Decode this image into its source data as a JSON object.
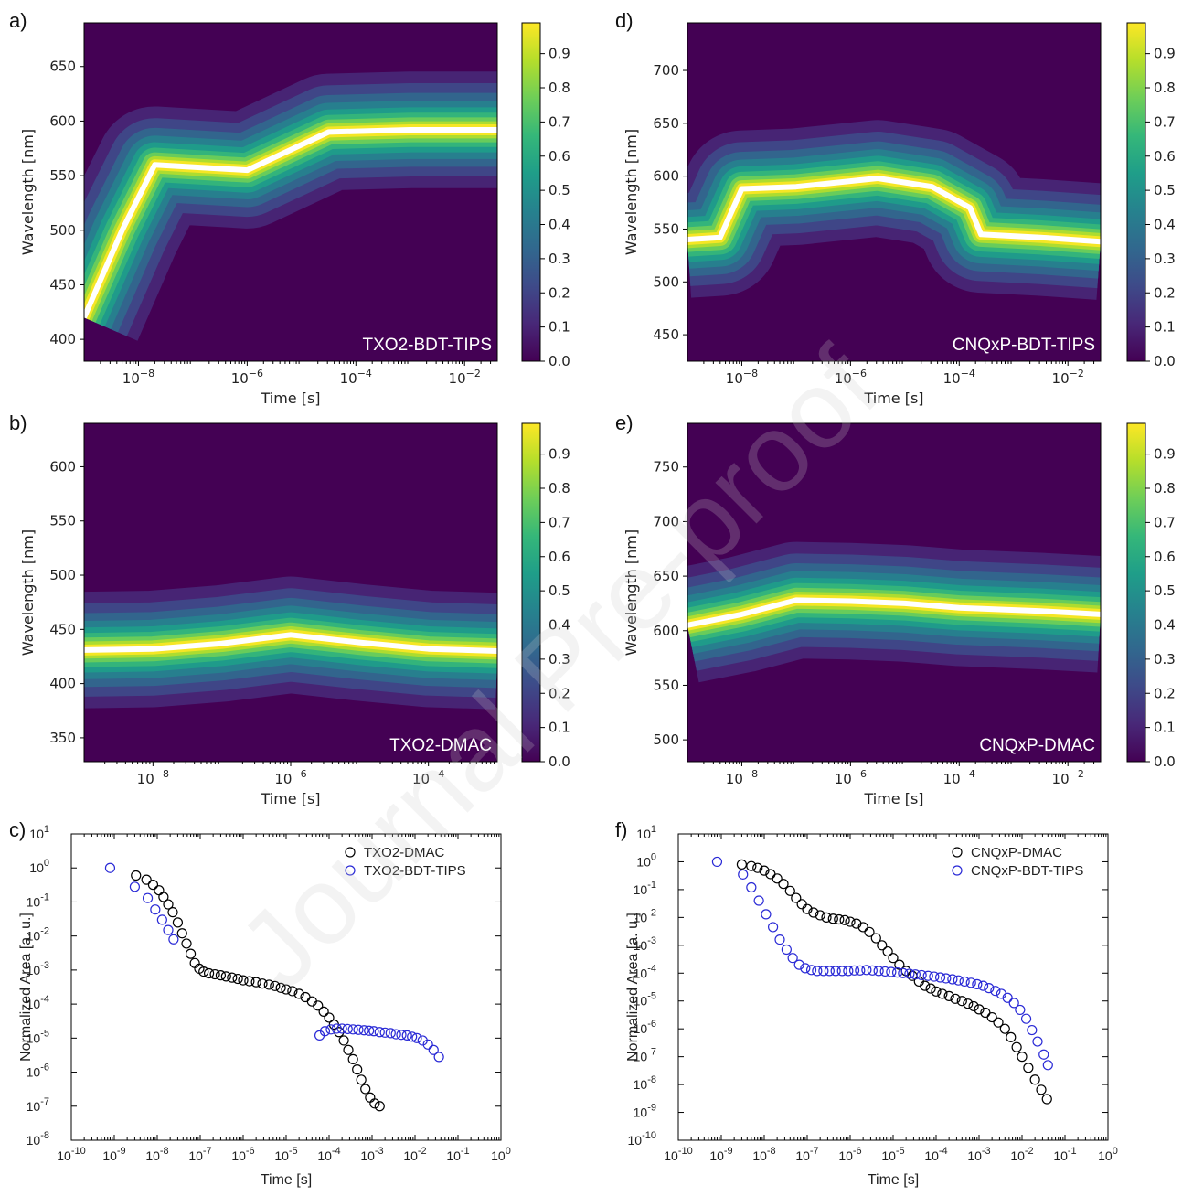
{
  "watermark": "Journal Pre-proof",
  "colors": {
    "viridis": [
      "#440154",
      "#482878",
      "#3e4a89",
      "#31688e",
      "#26828e",
      "#1f9e89",
      "#35b779",
      "#6ece58",
      "#b5de2b",
      "#fde725"
    ],
    "white": "#ffffff",
    "black": "#000000",
    "blue": "#2a2ad6"
  },
  "chart_data": [
    {
      "id": "a",
      "panel_label": "a)",
      "type": "heatmap",
      "title": "TXO2-BDT-TIPS",
      "xlabel": "Time [s]",
      "ylabel": "Wavelength [nm]",
      "xscale": "log",
      "xlim": [
        1e-09,
        0.04
      ],
      "ylim": [
        380,
        690
      ],
      "yticks": [
        "400",
        "450",
        "500",
        "550",
        "600",
        "650"
      ],
      "ytick_values": [
        400,
        450,
        500,
        550,
        600,
        650
      ],
      "xtick_exponents": [
        "-8",
        "-6",
        "-4",
        "-2"
      ],
      "xtick_values": [
        -8,
        -6,
        -4,
        -2
      ],
      "colorbar": {
        "ticks": [
          "0.0",
          "0.1",
          "0.2",
          "0.3",
          "0.4",
          "0.5",
          "0.6",
          "0.7",
          "0.8",
          "0.9"
        ],
        "range": [
          0,
          0.99
        ]
      },
      "peak_trace": [
        [
          -9,
          420
        ],
        [
          -8.3,
          500
        ],
        [
          -7.7,
          560
        ],
        [
          -6,
          555
        ],
        [
          -4.5,
          590
        ],
        [
          -3,
          592
        ],
        [
          -1.4,
          592
        ]
      ]
    },
    {
      "id": "d",
      "panel_label": "d)",
      "type": "heatmap",
      "title": "CNQxP-BDT-TIPS",
      "xlabel": "Time [s]",
      "ylabel": "Wavelength [nm]",
      "xscale": "log",
      "xlim": [
        1e-09,
        0.04
      ],
      "ylim": [
        425,
        745
      ],
      "yticks": [
        "450",
        "500",
        "550",
        "600",
        "650",
        "700"
      ],
      "ytick_values": [
        450,
        500,
        550,
        600,
        650,
        700
      ],
      "xtick_exponents": [
        "-8",
        "-6",
        "-4",
        "-2"
      ],
      "xtick_values": [
        -8,
        -6,
        -4,
        -2
      ],
      "colorbar": {
        "ticks": [
          "0.0",
          "0.1",
          "0.2",
          "0.3",
          "0.4",
          "0.5",
          "0.6",
          "0.7",
          "0.8",
          "0.9"
        ],
        "range": [
          0,
          0.99
        ]
      },
      "peak_trace": [
        [
          -9,
          540
        ],
        [
          -8.4,
          542
        ],
        [
          -8.0,
          588
        ],
        [
          -7,
          590
        ],
        [
          -5.5,
          598
        ],
        [
          -4.5,
          590
        ],
        [
          -3.8,
          570
        ],
        [
          -3.6,
          545
        ],
        [
          -2.5,
          542
        ],
        [
          -1.4,
          538
        ]
      ]
    },
    {
      "id": "b",
      "panel_label": "b)",
      "type": "heatmap",
      "title": "TXO2-DMAC",
      "xlabel": "Time [s]",
      "ylabel": "Wavelength [nm]",
      "xscale": "log",
      "xlim": [
        1e-09,
        0.001
      ],
      "ylim": [
        328,
        640
      ],
      "yticks": [
        "350",
        "400",
        "450",
        "500",
        "550",
        "600"
      ],
      "ytick_values": [
        350,
        400,
        450,
        500,
        550,
        600
      ],
      "xtick_exponents": [
        "-8",
        "-6",
        "-4"
      ],
      "xtick_values": [
        -8,
        -6,
        -4
      ],
      "colorbar": {
        "ticks": [
          "0.0",
          "0.1",
          "0.2",
          "0.3",
          "0.4",
          "0.5",
          "0.6",
          "0.7",
          "0.8",
          "0.9"
        ],
        "range": [
          0,
          0.99
        ]
      },
      "peak_trace": [
        [
          -9,
          431
        ],
        [
          -8,
          432
        ],
        [
          -7,
          437
        ],
        [
          -6,
          445
        ],
        [
          -5,
          438
        ],
        [
          -4,
          432
        ],
        [
          -3,
          430
        ]
      ]
    },
    {
      "id": "e",
      "panel_label": "e)",
      "type": "heatmap",
      "title": "CNQxP-DMAC",
      "xlabel": "Time [s]",
      "ylabel": "Wavelength [nm]",
      "xscale": "log",
      "xlim": [
        1e-09,
        0.04
      ],
      "ylim": [
        480,
        790
      ],
      "yticks": [
        "500",
        "550",
        "600",
        "650",
        "700",
        "750"
      ],
      "ytick_values": [
        500,
        550,
        600,
        650,
        700,
        750
      ],
      "xtick_exponents": [
        "-8",
        "-6",
        "-4",
        "-2"
      ],
      "xtick_values": [
        -8,
        -6,
        -4,
        -2
      ],
      "colorbar": {
        "ticks": [
          "0.0",
          "0.1",
          "0.2",
          "0.3",
          "0.4",
          "0.5",
          "0.6",
          "0.7",
          "0.8",
          "0.9"
        ],
        "range": [
          0,
          0.99
        ]
      },
      "peak_trace": [
        [
          -9,
          605
        ],
        [
          -8,
          615
        ],
        [
          -7,
          628
        ],
        [
          -6,
          627
        ],
        [
          -5,
          625
        ],
        [
          -4,
          621
        ],
        [
          -2.5,
          618
        ],
        [
          -1.4,
          615
        ]
      ]
    },
    {
      "id": "c",
      "panel_label": "c)",
      "type": "scatter",
      "xscale": "log",
      "yscale": "log",
      "xlabel": "Time [s]",
      "ylabel": "Normalized Area [a. u.]",
      "xlim": [
        1e-10,
        1
      ],
      "ylim": [
        1e-08,
        10
      ],
      "xtick_exponents": [
        "-10",
        "-9",
        "-8",
        "-7",
        "-6",
        "-5",
        "-4",
        "-3",
        "-2",
        "-1",
        "0"
      ],
      "ytick_exponents": [
        "-8",
        "-7",
        "-6",
        "-5",
        "-4",
        "-3",
        "-2",
        "-1",
        "0",
        "1"
      ],
      "series": [
        {
          "name": "TXO2-DMAC",
          "color": "#000000",
          "x": [
            3.2e-09,
            5.6e-09,
            8e-09,
            1.1e-08,
            1.4e-08,
            1.8e-08,
            2.3e-08,
            3e-08,
            3.8e-08,
            4.8e-08,
            6e-08,
            7.5e-08,
            9.5e-08,
            1.2e-07,
            1.6e-07,
            2.2e-07,
            3e-07,
            4e-07,
            5.5e-07,
            7.5e-07,
            1e-06,
            1.4e-06,
            2e-06,
            2.8e-06,
            4e-06,
            5.5e-06,
            7.5e-06,
            1e-05,
            1.4e-05,
            2e-05,
            2.8e-05,
            4e-05,
            5.5e-05,
            7.5e-05,
            0.0001,
            0.00013,
            0.00017,
            0.00022,
            0.00028,
            0.00036,
            0.00045,
            0.00056,
            0.0007,
            0.0009,
            0.00115,
            0.0015
          ],
          "y": [
            0.6,
            0.45,
            0.32,
            0.22,
            0.14,
            0.085,
            0.05,
            0.025,
            0.012,
            0.006,
            0.003,
            0.0016,
            0.0011,
            0.0009,
            0.0008,
            0.00075,
            0.0007,
            0.00065,
            0.0006,
            0.00055,
            0.0005,
            0.00047,
            0.00044,
            0.0004,
            0.00037,
            0.00034,
            0.0003,
            0.00027,
            0.00024,
            0.0002,
            0.00016,
            0.00012,
            9e-05,
            6e-05,
            4e-05,
            2.5e-05,
            1.5e-05,
            8.5e-06,
            4.5e-06,
            2.4e-06,
            1.2e-06,
            6e-07,
            3.2e-07,
            1.8e-07,
            1.2e-07,
            1e-07
          ]
        },
        {
          "name": "TXO2-BDT-TIPS",
          "color": "#2a2ad6",
          "x": [
            8e-10,
            3e-09,
            6e-09,
            9e-09,
            1.3e-08,
            1.8e-08,
            2.4e-08,
            6e-05,
            8e-05,
            0.00011,
            0.00015,
            0.0002,
            0.00027,
            0.00036,
            0.00048,
            0.00065,
            0.00085,
            0.0011,
            0.0015,
            0.002,
            0.0027,
            0.0036,
            0.0048,
            0.0065,
            0.0085,
            0.011,
            0.015,
            0.02,
            0.027,
            0.036
          ],
          "y": [
            1,
            0.28,
            0.13,
            0.06,
            0.03,
            0.015,
            0.008,
            1.2e-05,
            1.6e-05,
            1.8e-05,
            1.9e-05,
            1.9e-05,
            1.85e-05,
            1.8e-05,
            1.75e-05,
            1.7e-05,
            1.65e-05,
            1.6e-05,
            1.5e-05,
            1.45e-05,
            1.4e-05,
            1.3e-05,
            1.25e-05,
            1.2e-05,
            1.1e-05,
            1e-05,
            8.5e-06,
            6.5e-06,
            4.5e-06,
            2.8e-06
          ]
        }
      ]
    },
    {
      "id": "f",
      "panel_label": "f)",
      "type": "scatter",
      "xscale": "log",
      "yscale": "log",
      "xlabel": "Time [s]",
      "ylabel": "Normalized Area [a. u.]",
      "xlim": [
        1e-10,
        1
      ],
      "ylim": [
        1e-10,
        10
      ],
      "xtick_exponents": [
        "-10",
        "-9",
        "-8",
        "-7",
        "-6",
        "-5",
        "-4",
        "-3",
        "-2",
        "-1",
        "0"
      ],
      "ytick_exponents": [
        "-10",
        "-9",
        "-8",
        "-7",
        "-6",
        "-5",
        "-4",
        "-3",
        "-2",
        "-1",
        "0",
        "1"
      ],
      "series": [
        {
          "name": "CNQxP-DMAC",
          "color": "#000000",
          "x": [
            3e-09,
            5e-09,
            7e-09,
            1e-08,
            1.4e-08,
            2e-08,
            2.8e-08,
            4e-08,
            5.5e-08,
            7.5e-08,
            1e-07,
            1.4e-07,
            2e-07,
            2.8e-07,
            4e-07,
            5.5e-07,
            7.5e-07,
            1e-06,
            1.4e-06,
            2e-06,
            2.8e-06,
            4e-06,
            5.5e-06,
            7.5e-06,
            1e-05,
            1.4e-05,
            2e-05,
            2.8e-05,
            4e-05,
            5.5e-05,
            7.5e-05,
            0.0001,
            0.00014,
            0.0002,
            0.00028,
            0.0004,
            0.00055,
            0.00075,
            0.001,
            0.0014,
            0.002,
            0.0028,
            0.004,
            0.0055,
            0.0075,
            0.01,
            0.014,
            0.02,
            0.028,
            0.038
          ],
          "y": [
            0.8,
            0.7,
            0.6,
            0.48,
            0.36,
            0.25,
            0.16,
            0.09,
            0.05,
            0.03,
            0.02,
            0.015,
            0.012,
            0.01,
            0.009,
            0.0085,
            0.008,
            0.007,
            0.006,
            0.0045,
            0.003,
            0.0018,
            0.001,
            0.0006,
            0.00035,
            0.0002,
            0.00012,
            8e-05,
            5e-05,
            3.5e-05,
            2.8e-05,
            2.2e-05,
            1.8e-05,
            1.5e-05,
            1.2e-05,
            1e-05,
            8e-06,
            6.5e-06,
            5e-06,
            3.8e-06,
            2.6e-06,
            1.7e-06,
            1e-06,
            5e-07,
            2.2e-07,
            1e-07,
            4e-08,
            1.5e-08,
            6.5e-09,
            3e-09
          ]
        },
        {
          "name": "CNQxP-BDT-TIPS",
          "color": "#2a2ad6",
          "x": [
            8e-10,
            3.2e-09,
            5e-09,
            7.5e-09,
            1.1e-08,
            1.6e-08,
            2.3e-08,
            3.3e-08,
            4.6e-08,
            6.5e-08,
            9e-08,
            1.25e-07,
            1.7e-07,
            2.4e-07,
            3.3e-07,
            4.6e-07,
            6.5e-07,
            9e-07,
            1.25e-06,
            1.7e-06,
            2.4e-06,
            3.3e-06,
            4.6e-06,
            6.5e-06,
            9e-06,
            1.25e-05,
            1.7e-05,
            2.4e-05,
            3.3e-05,
            4.6e-05,
            6.5e-05,
            9e-05,
            0.000125,
            0.00017,
            0.00024,
            0.00033,
            0.00046,
            0.00065,
            0.0009,
            0.00125,
            0.0017,
            0.0024,
            0.0033,
            0.0046,
            0.0065,
            0.009,
            0.0125,
            0.017,
            0.023,
            0.032,
            0.04
          ],
          "y": [
            1,
            0.35,
            0.12,
            0.04,
            0.013,
            0.0045,
            0.0016,
            0.0007,
            0.00035,
            0.0002,
            0.00015,
            0.00013,
            0.00012,
            0.00012,
            0.00012,
            0.00012,
            0.00012,
            0.00012,
            0.000125,
            0.000125,
            0.00013,
            0.000125,
            0.00012,
            0.000115,
            0.00011,
            0.000105,
            0.0001,
            9.5e-05,
            9e-05,
            8.5e-05,
            8e-05,
            7.5e-05,
            7e-05,
            6.5e-05,
            6e-05,
            5.5e-05,
            5e-05,
            4.5e-05,
            4e-05,
            3.5e-05,
            2.9e-05,
            2.3e-05,
            1.8e-05,
            1.3e-05,
            8.5e-06,
            4.8e-06,
            2.3e-06,
            9e-07,
            3.5e-07,
            1.2e-07,
            5e-08
          ]
        }
      ]
    }
  ]
}
